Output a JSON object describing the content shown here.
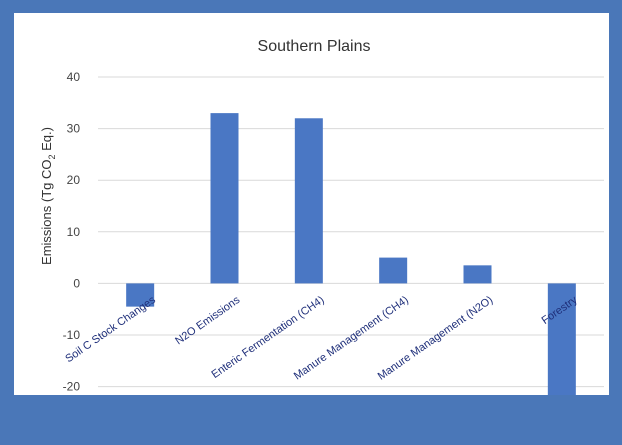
{
  "chart_data": {
    "type": "bar",
    "title": "Southern Plains",
    "xlabel": "",
    "ylabel": "Emissions (Tg CO2 Eq.)",
    "ylabel_main": "Emissions (Tg CO",
    "ylabel_sub": "2",
    "ylabel_end": " Eq.)",
    "categories": [
      "Soil C Stock Changes",
      "N2O Emissions",
      "Enteric Fermentation (CH4)",
      "Manure Management (CH4)",
      "Manure Management (N2O)",
      "Forestry"
    ],
    "values": [
      -4.5,
      33,
      32,
      5,
      3.5,
      -26
    ],
    "ylim": [
      -30,
      40
    ],
    "yticks": [
      40,
      30,
      20,
      10,
      0,
      -10,
      -20
    ],
    "grid": true,
    "bar_color": "#4a77c4",
    "grid_color": "#d9d9d9",
    "label_color": "#1f2f7a"
  }
}
